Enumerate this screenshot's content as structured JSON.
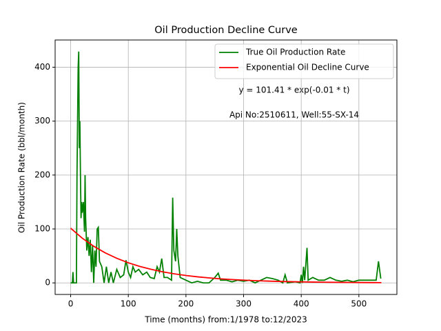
{
  "chart_data": {
    "type": "line",
    "title": "Oil Production Decline Curve",
    "xlabel": "Time (months) from:1/1978 to:12/2023",
    "ylabel": "Oil Production Rate (bbl/month)",
    "annotations": [
      "y = 101.41 * exp(-0.01 * t)",
      "Api No:2510611, Well:55-SX-14"
    ],
    "xlim": [
      -26.95,
      565.95
    ],
    "ylim": [
      -21.45,
      450.45
    ],
    "xticks": [
      0,
      100,
      200,
      300,
      400,
      500
    ],
    "yticks": [
      0,
      100,
      200,
      300,
      400
    ],
    "grid": true,
    "legend": "upper right",
    "series": [
      {
        "name": "True Oil Production Rate",
        "color": "#008000",
        "x": [
          0,
          3,
          4,
          5,
          10,
          11,
          13,
          14,
          15,
          16,
          17,
          18,
          19,
          20,
          22,
          24,
          25,
          26,
          28,
          30,
          32,
          34,
          36,
          38,
          40,
          42,
          44,
          46,
          48,
          50,
          54,
          58,
          62,
          66,
          70,
          74,
          80,
          86,
          92,
          96,
          100,
          104,
          108,
          112,
          118,
          125,
          132,
          138,
          145,
          150,
          154,
          158,
          162,
          168,
          175,
          177,
          179,
          182,
          184,
          186,
          190,
          200,
          210,
          220,
          230,
          240,
          250,
          256,
          260,
          270,
          280,
          290,
          300,
          310,
          320,
          330,
          340,
          350,
          360,
          368,
          372,
          376,
          390,
          398,
          400,
          402,
          404,
          406,
          410,
          412,
          420,
          430,
          440,
          450,
          460,
          470,
          480,
          490,
          500,
          510,
          520,
          530,
          534,
          538
        ],
        "values": [
          0,
          0,
          20,
          0,
          0,
          200,
          400,
          429,
          250,
          300,
          200,
          120,
          150,
          130,
          150,
          95,
          200,
          120,
          60,
          85,
          50,
          80,
          20,
          70,
          0,
          60,
          30,
          100,
          103,
          40,
          30,
          0,
          30,
          0,
          20,
          0,
          25,
          10,
          15,
          42,
          20,
          10,
          30,
          20,
          25,
          15,
          20,
          10,
          8,
          30,
          20,
          45,
          10,
          10,
          5,
          158,
          60,
          40,
          100,
          50,
          10,
          5,
          0,
          3,
          0,
          0,
          10,
          18,
          5,
          5,
          2,
          5,
          3,
          5,
          0,
          5,
          10,
          8,
          5,
          0,
          15,
          0,
          2,
          0,
          15,
          0,
          30,
          5,
          65,
          5,
          10,
          5,
          5,
          10,
          5,
          3,
          5,
          2,
          5,
          5,
          5,
          5,
          40,
          8
        ]
      },
      {
        "name": "Exponential Oil Decline Curve",
        "color": "#ff0000",
        "x": [
          0,
          20,
          40,
          60,
          80,
          100,
          120,
          140,
          160,
          180,
          200,
          220,
          240,
          260,
          280,
          300,
          320,
          340,
          360,
          380,
          400,
          420,
          440,
          460,
          480,
          500,
          520,
          539
        ],
        "values": [
          101.41,
          83.03,
          67.98,
          55.65,
          45.57,
          37.31,
          30.54,
          25.01,
          20.47,
          16.76,
          13.72,
          11.24,
          9.2,
          7.53,
          6.17,
          5.05,
          4.13,
          3.38,
          2.77,
          2.27,
          1.86,
          1.52,
          1.25,
          1.02,
          0.83,
          0.68,
          0.56,
          0.46
        ]
      }
    ]
  }
}
